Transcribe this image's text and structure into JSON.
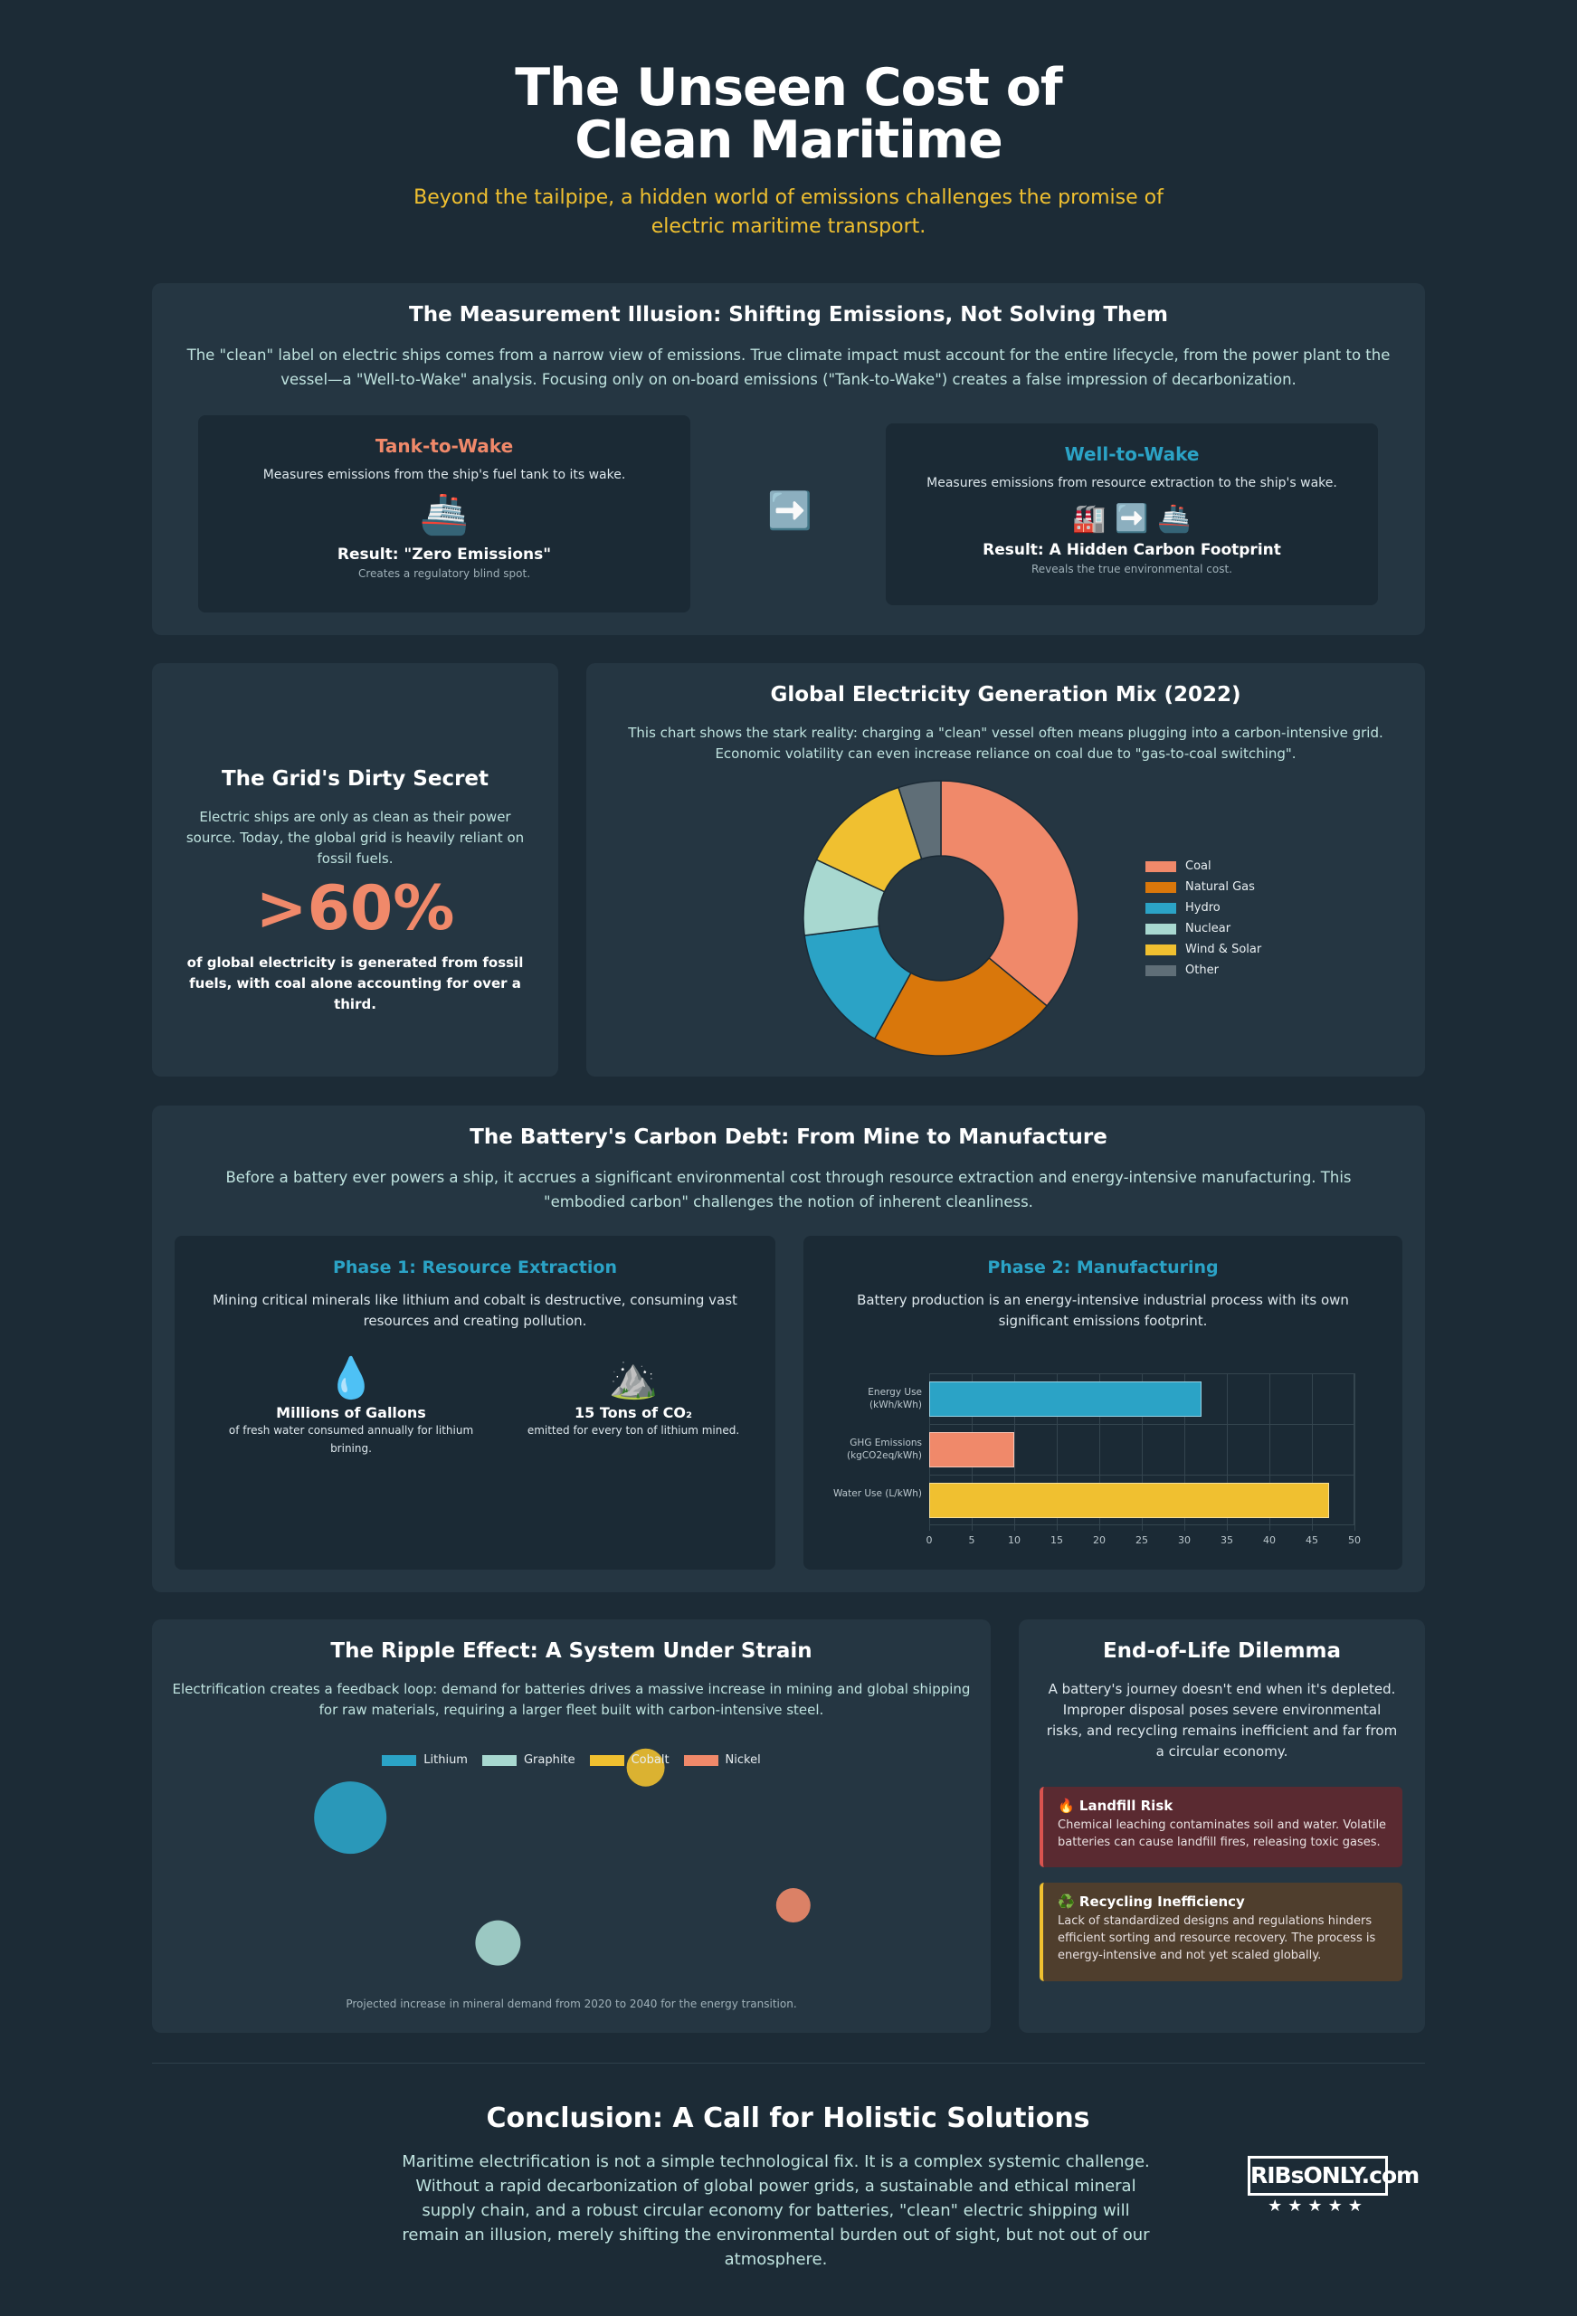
{
  "header": {
    "title": "The Unseen Cost of Clean Maritime",
    "subtitle": "Beyond the tailpipe, a hidden world of emissions challenges the promise of electric maritime transport."
  },
  "measurement": {
    "title": "The Measurement Illusion: Shifting Emissions, Not Solving Them",
    "text": "The \"clean\" label on electric ships comes from a narrow view of emissions. True climate impact must account for the entire lifecycle, from the power plant to the vessel—a \"Well-to-Wake\" analysis. Focusing only on on-board emissions (\"Tank-to-Wake\") creates a false impression of decarbonization.",
    "cards": [
      {
        "title": "Tank-to-Wake",
        "text": "Measures emissions from the ship's fuel tank to its wake.",
        "result": "Result: \"Zero Emissions\"",
        "note": "Creates a regulatory blind spot."
      },
      {
        "title": "Well-to-Wake",
        "text": "Measures emissions from resource extraction to the ship's wake.",
        "result": "Result: A Hidden Carbon Footprint",
        "note": "Reveals the true environmental cost."
      }
    ]
  },
  "grid": {
    "title": "The Grid's Dirty Secret",
    "text": "Electric ships are only as clean as their power source. Today, the global grid is heavily reliant on fossil fuels.",
    "stat": ">60%",
    "stat_text": "of global electricity is generated from fossil fuels, with coal alone accounting for over a third."
  },
  "mix_chart": {
    "type": "pie",
    "title": "Global Electricity Generation Mix (2022)",
    "description": "This chart shows the stark reality: charging a \"clean\" vessel often means plugging into a carbon-intensive grid. Economic volatility can even increase reliance on coal due to \"gas-to-coal switching\".",
    "categories": [
      "Coal",
      "Natural Gas",
      "Hydro",
      "Nuclear",
      "Wind & Solar",
      "Other"
    ],
    "values": [
      36,
      22,
      15,
      9,
      13,
      5
    ],
    "colors": [
      "#f0896a",
      "#d9770b",
      "#2ba3c6",
      "#a8d8d0",
      "#f0c030",
      "#5f6e77"
    ]
  },
  "battery": {
    "title": "The Battery's Carbon Debt: From Mine to Manufacture",
    "text": "Before a battery ever powers a ship, it accrues a significant environmental cost through resource extraction and energy-intensive manufacturing. This \"embodied carbon\" challenges the notion of inherent cleanliness.",
    "phases": [
      {
        "title": "Phase 1: Resource Extraction",
        "text": "Mining critical minerals like lithium and cobalt is destructive, consuming vast resources and creating pollution.",
        "facts": [
          {
            "title": "Millions of Gallons",
            "text": "of fresh water consumed annually for lithium brining."
          },
          {
            "title": "15 Tons of CO₂",
            "text": "emitted for every ton of lithium mined."
          }
        ]
      },
      {
        "title": "Phase 2: Manufacturing",
        "text": "Battery production is an energy-intensive industrial process with its own significant emissions footprint."
      }
    ]
  },
  "production_chart": {
    "type": "bar",
    "orientation": "horizontal",
    "categories": [
      "Energy Use (kWh/kWh)",
      "GHG Emissions (kgCO2eq/kWh)",
      "Water Use (L/kWh)"
    ],
    "values": [
      32,
      10,
      47
    ],
    "colors": [
      "#2ba3c6",
      "#f0896a",
      "#f0c030"
    ],
    "xlim": [
      0,
      50
    ],
    "xticks": [
      0,
      5,
      10,
      15,
      20,
      25,
      30,
      35,
      40,
      45,
      50
    ],
    "grid": true
  },
  "ripple": {
    "title": "The Ripple Effect: A System Under Strain",
    "text": "Electrification creates a feedback loop: demand for batteries drives a massive increase in mining and global shipping for raw materials, requiring a larger fleet built with carbon-intensive steel."
  },
  "mineral_chart": {
    "type": "bubble",
    "series": [
      {
        "name": "Lithium",
        "color": "#2ba3c6",
        "x": [
          1
        ],
        "y": [
          7
        ],
        "size": [
          40
        ]
      },
      {
        "name": "Graphite",
        "color": "#a8d8d0",
        "x": [
          2
        ],
        "y": [
          2
        ],
        "size": [
          25
        ]
      },
      {
        "name": "Cobalt",
        "color": "#f0c030",
        "x": [
          3
        ],
        "y": [
          9
        ],
        "size": [
          21
        ]
      },
      {
        "name": "Nickel",
        "color": "#f0896a",
        "x": [
          4
        ],
        "y": [
          3.5
        ],
        "size": [
          19
        ]
      }
    ],
    "xlim": [
      0,
      5
    ],
    "ylim": [
      0,
      10
    ],
    "caption": "Projected increase in mineral demand from 2020 to 2040 for the energy transition."
  },
  "end_of_life": {
    "title": "End-of-Life Dilemma",
    "text": "A battery's journey doesn't end when it's depleted. Improper disposal poses severe environmental risks, and recycling remains inefficient and far from a circular economy.",
    "risks": [
      {
        "title": "Landfill Risk",
        "text": "Chemical leaching contaminates soil and water. Volatile batteries can cause landfill fires, releasing toxic gases."
      },
      {
        "title": "Recycling Inefficiency",
        "text": "Lack of standardized designs and regulations hinders efficient sorting and resource recovery. The process is energy-intensive and not yet scaled globally."
      }
    ]
  },
  "conclusion": {
    "title": "Conclusion: A Call for Holistic Solutions",
    "text": "Maritime electrification is not a simple technological fix. It is a complex systemic challenge. Without a rapid decarbonization of global power grids, a sustainable and ethical mineral supply chain, and a robust circular economy for batteries, \"clean\" electric shipping will remain an illusion, merely shifting the environmental burden out of sight, but not out of our atmosphere."
  },
  "logo": {
    "text": "RIBsONLY.com"
  }
}
